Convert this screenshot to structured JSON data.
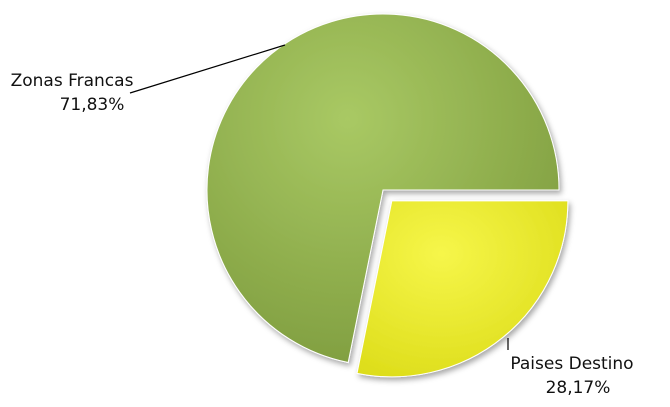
{
  "chart_data": {
    "type": "pie",
    "categories": [
      "Zonas Francas",
      "Paises Destino"
    ],
    "values": [
      71.83,
      28.17
    ],
    "value_labels": [
      "71,83%",
      "28,17%"
    ],
    "colors": [
      "#98b954",
      "#eeee2a"
    ]
  }
}
